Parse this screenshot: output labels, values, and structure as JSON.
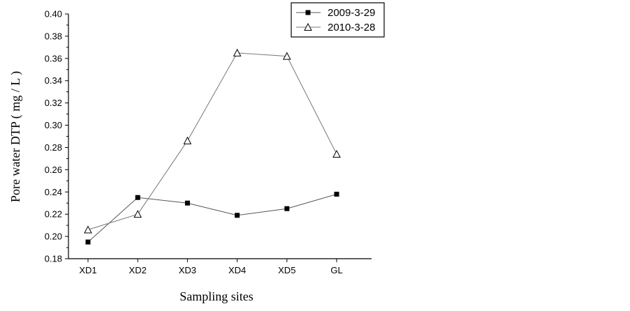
{
  "chart_data": {
    "type": "line",
    "title": "",
    "xlabel": "Sampling sites",
    "ylabel": "Pore water DTP ( mg / L )",
    "categories": [
      "XD1",
      "XD2",
      "XD3",
      "XD4",
      "XD5",
      "GL"
    ],
    "ylim": [
      0.18,
      0.4
    ],
    "yticks": [
      "0.18",
      "0.20",
      "0.22",
      "0.24",
      "0.26",
      "0.28",
      "0.30",
      "0.32",
      "0.34",
      "0.36",
      "0.38",
      "0.40"
    ],
    "grid": false,
    "legend_position": "top-right",
    "series": [
      {
        "name": "2009-3-29",
        "marker": "filled-square",
        "color": "#000000",
        "line_color": "#555555",
        "values": [
          0.195,
          0.235,
          0.23,
          0.219,
          0.225,
          0.238
        ]
      },
      {
        "name": "2010-3-28",
        "marker": "open-triangle",
        "color": "#000000",
        "line_color": "#777777",
        "values": [
          0.206,
          0.22,
          0.286,
          0.365,
          0.362,
          0.274
        ]
      }
    ]
  }
}
